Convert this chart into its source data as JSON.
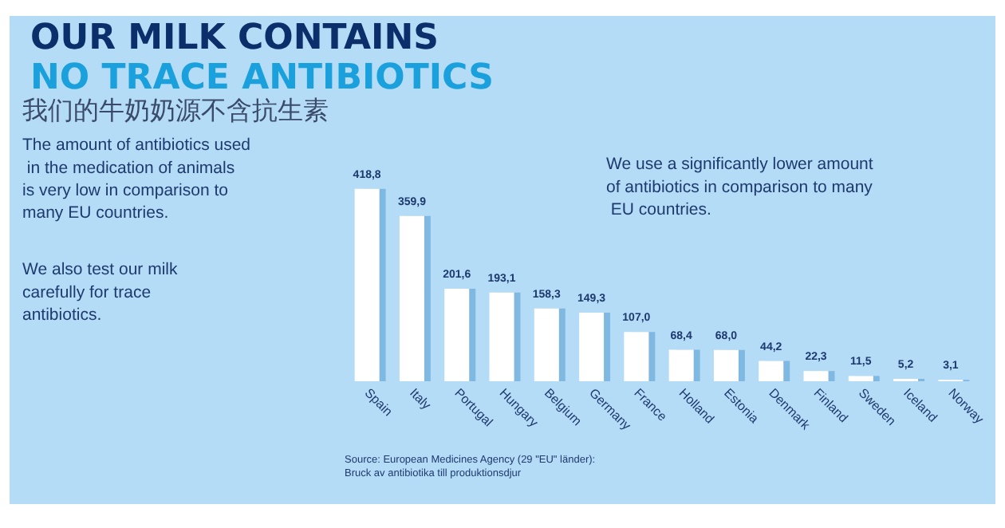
{
  "chart_data": {
    "type": "bar",
    "title": "OUR MILK CONTAINS",
    "subtitle": "NO TRACE ANTIBIOTICS",
    "categories": [
      "Spain",
      "Italy",
      "Portugal",
      "Hungary",
      "Belgium",
      "Germany",
      "France",
      "Holland",
      "Estonia",
      "Denmark",
      "Finland",
      "Sweden",
      "Iceland",
      "Norway"
    ],
    "values": [
      418.8,
      359.9,
      201.6,
      193.1,
      158.3,
      149.3,
      107.0,
      68.4,
      68.0,
      44.2,
      22.3,
      11.5,
      5.2,
      3.1
    ],
    "value_labels": [
      "418,8",
      "359,9",
      "201,6",
      "193,1",
      "158,3",
      "149,3",
      "107,0",
      "68,4",
      "68,0",
      "44,2",
      "22,3",
      "11,5",
      "5,2",
      "3,1"
    ],
    "color": "#ffffff",
    "annotations": [
      "我们的牛奶奶源不含抗生素",
      "The amount of antibiotics used in the medication of animals is very low in comparison to many EU countries.",
      "We also test our milk carefully for trace antibiotics.",
      "We use a significantly lower amount of antibiotics in comparison to many EU countries.",
      "Source: European Medicines Agency (29 \"EU\" länder):\nBruck av antibiotika till produktionsdjur"
    ]
  }
}
